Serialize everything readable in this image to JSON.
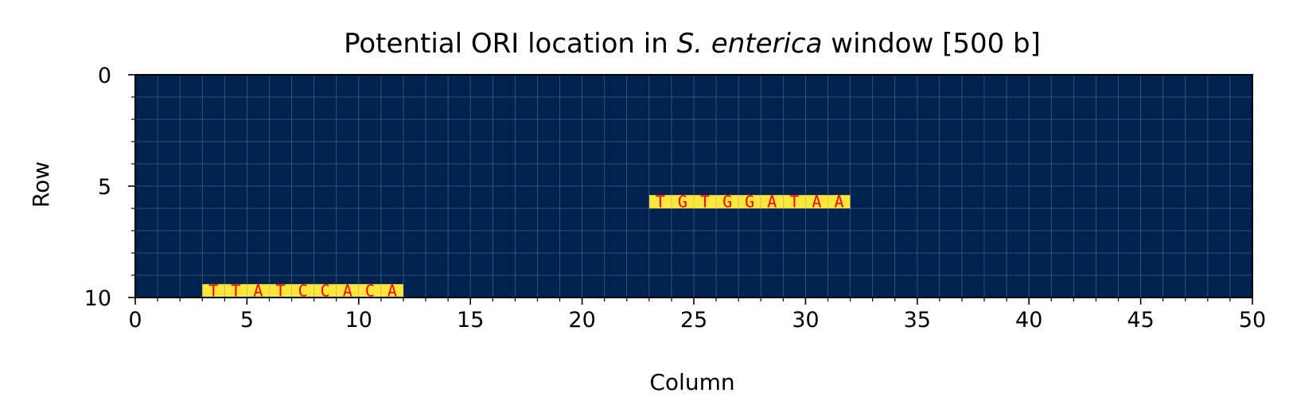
{
  "chart_data": {
    "type": "heatmap",
    "title_prefix": "Potential ORI location in ",
    "title_italic": "S. enterica",
    "title_suffix": " window [500 b]",
    "xlabel": "Column",
    "ylabel": "Row",
    "xlim": [
      0,
      50
    ],
    "ylim": [
      10,
      0
    ],
    "x_ticks": [
      0,
      5,
      10,
      15,
      20,
      25,
      30,
      35,
      40,
      45,
      50
    ],
    "y_ticks": [
      0,
      5,
      10
    ],
    "x_minor_step": 1,
    "y_minor_step": 1,
    "grid": true,
    "colors": {
      "background": "#00224e",
      "highlight": "#fde73a",
      "letter": "#ff0000",
      "grid": "#8fa3b8"
    },
    "highlights": [
      {
        "row": 5,
        "col_start": 23,
        "letters": [
          "T",
          "G",
          "T",
          "G",
          "G",
          "A",
          "T",
          "A",
          "A"
        ]
      },
      {
        "row": 9,
        "col_start": 3,
        "letters": [
          "T",
          "T",
          "A",
          "T",
          "C",
          "C",
          "A",
          "C",
          "A"
        ]
      }
    ]
  }
}
